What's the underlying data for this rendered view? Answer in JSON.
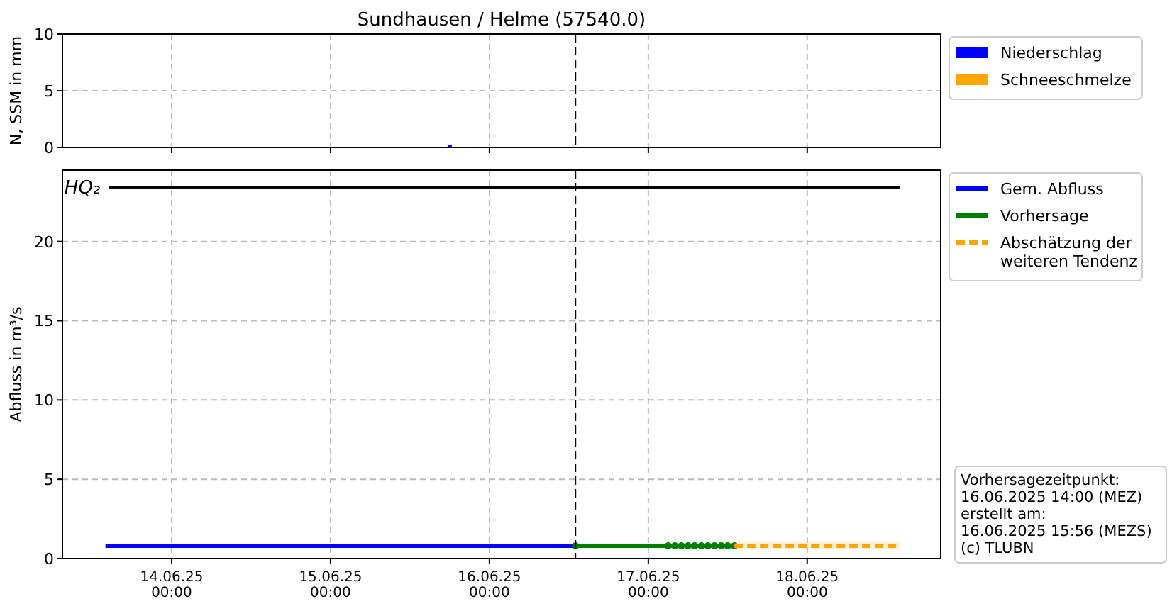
{
  "chart_data": [
    {
      "type": "bar",
      "title": "Sundhausen / Helme (57540.0)",
      "ylabel": "N, SSM in mm",
      "xlim": [
        "2025-06-13T07:30",
        "2025-06-18T20:10"
      ],
      "ylim": [
        0,
        10
      ],
      "yticks": [
        0,
        5,
        10
      ],
      "xticks": [
        {
          "value": "2025-06-14T00:00",
          "label": null
        },
        {
          "value": "2025-06-15T00:00",
          "label": null
        },
        {
          "value": "2025-06-16T00:00",
          "label": null
        },
        {
          "value": "2025-06-17T00:00",
          "label": null
        },
        {
          "value": "2025-06-18T00:00",
          "label": null
        }
      ],
      "tick_labels": "y",
      "grid": true,
      "legend": "top right",
      "ref_lines": [
        {
          "axis": "x",
          "value": "2025-06-16T13:00",
          "color": "#000000",
          "line_style": "dashed"
        }
      ],
      "series": [
        {
          "name": "Niederschlag",
          "color": "#0000ff",
          "x": [
            "2025-06-15T18:00"
          ],
          "values": [
            0.2
          ]
        },
        {
          "name": "Schneeschmelze",
          "color": "#ffa500",
          "x": [
            "2025-06-15T18:00"
          ],
          "values": [
            0
          ]
        }
      ]
    },
    {
      "type": "line",
      "ylabel": "Abfluss in m³/s",
      "xlim": [
        "2025-06-13T07:30",
        "2025-06-18T20:10"
      ],
      "ylim": [
        0,
        24.5
      ],
      "yticks": [
        0,
        5,
        10,
        15,
        20
      ],
      "xticks": [
        {
          "value": "2025-06-14T00:00",
          "label": "14.06.25\n00:00"
        },
        {
          "value": "2025-06-15T00:00",
          "label": "15.06.25\n00:00"
        },
        {
          "value": "2025-06-16T00:00",
          "label": "16.06.25\n00:00"
        },
        {
          "value": "2025-06-17T00:00",
          "label": "17.06.25\n00:00"
        },
        {
          "value": "2025-06-18T00:00",
          "label": "18.06.25\n00:00"
        }
      ],
      "grid": true,
      "legend": "top right",
      "ref_lines": [
        {
          "axis": "x",
          "value": "2025-06-16T13:00",
          "color": "#000000",
          "line_style": "dashed"
        }
      ],
      "annotations": [
        {
          "text": "HQ₂",
          "x": "2025-06-13T14:30",
          "y": 23.4
        },
        "Vorhersagezeitpunkt:\n16.06.2025 14:00 (MEZ)\nerstellt am:\n16.06.2025 15:56 (MEZS)\n(c) TLUBN"
      ],
      "series": [
        {
          "color": "#000000",
          "x": [
            "2025-06-13T14:30",
            "2025-06-18T14:00"
          ],
          "values": [
            23.4,
            23.4
          ],
          "marker": "none",
          "line_style": "solid"
        },
        {
          "name": "Gem. Abfluss",
          "color": "#0000ff",
          "x": [
            "2025-06-13T14:00",
            "2025-06-16T13:00"
          ],
          "values": [
            0.8,
            0.8
          ],
          "marker": "none",
          "line_style": "solid"
        },
        {
          "name": "Vorhersage",
          "color": "#008000",
          "x": [
            "2025-06-16T13:00",
            "2025-06-17T03:00",
            "2025-06-17T04:00",
            "2025-06-17T05:00",
            "2025-06-17T06:00",
            "2025-06-17T07:00",
            "2025-06-17T08:00",
            "2025-06-17T09:00",
            "2025-06-17T10:00",
            "2025-06-17T11:00",
            "2025-06-17T12:00",
            "2025-06-17T13:00"
          ],
          "values": [
            0.8,
            0.8,
            0.8,
            0.8,
            0.8,
            0.8,
            0.8,
            0.8,
            0.8,
            0.8,
            0.8,
            0.8
          ],
          "marker": "circle",
          "line_style": "solid"
        },
        {
          "name": "Abschätzung der\nweiteren Tendenz",
          "color": "#ffa500",
          "x": [
            "2025-06-17T13:00",
            "2025-06-18T14:00"
          ],
          "values": [
            0.8,
            0.8
          ],
          "lower": [
            0.6,
            0.6
          ],
          "upper": [
            1.1,
            1.1
          ],
          "marker": "none",
          "line_style": "dashed"
        }
      ]
    }
  ]
}
